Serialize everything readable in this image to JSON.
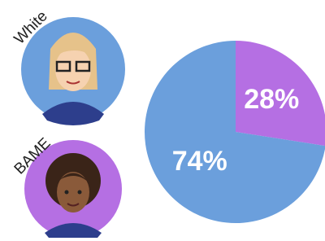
{
  "chart_data": {
    "type": "pie",
    "categories": [
      "White",
      "BAME"
    ],
    "values": [
      74,
      28
    ],
    "value_labels": [
      "74%",
      "28%"
    ],
    "colors": [
      "#6b9fdc",
      "#b56fe3"
    ]
  }
}
